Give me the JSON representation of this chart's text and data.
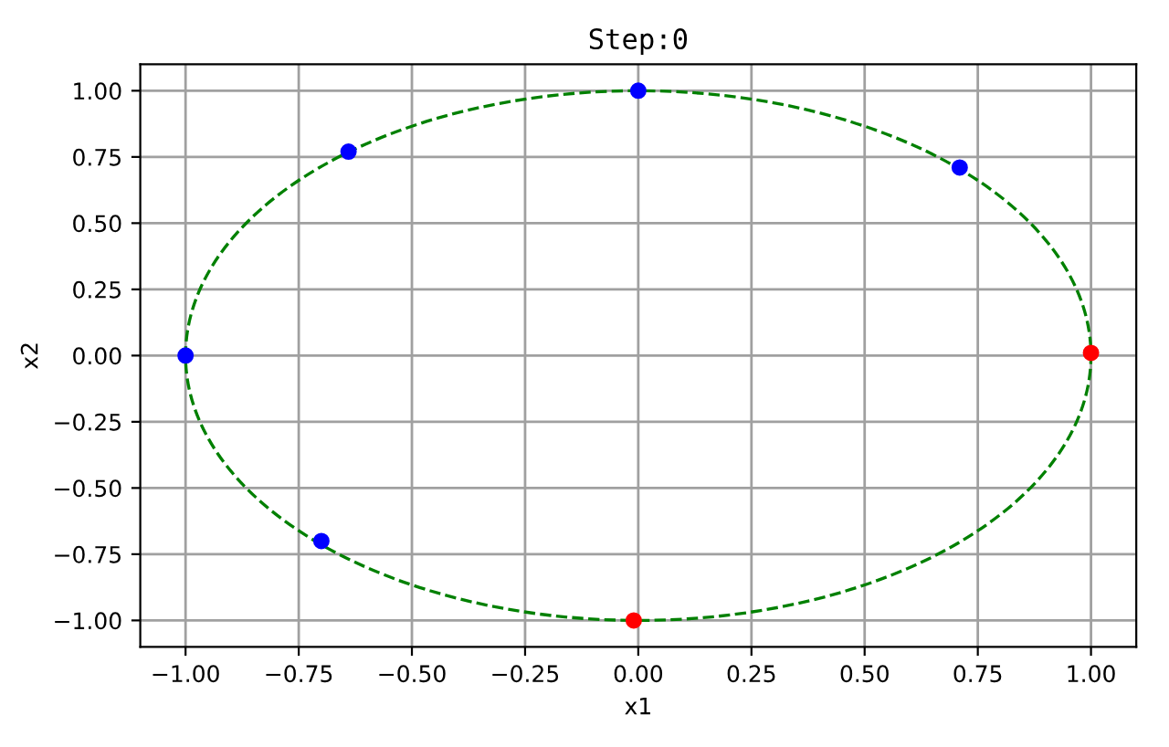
{
  "chart_data": {
    "type": "scatter",
    "title": "Step:0",
    "xlabel": "x1",
    "ylabel": "x2",
    "xlim": [
      -1.1,
      1.1
    ],
    "ylim": [
      -1.1,
      1.1
    ],
    "xticks": [
      {
        "value": -1,
        "label": "−1.00"
      },
      {
        "value": -0.75,
        "label": "−0.75"
      },
      {
        "value": -0.5,
        "label": "−0.50"
      },
      {
        "value": -0.25,
        "label": "−0.25"
      },
      {
        "value": 0,
        "label": "0.00"
      },
      {
        "value": 0.25,
        "label": "0.25"
      },
      {
        "value": 0.5,
        "label": "0.50"
      },
      {
        "value": 0.75,
        "label": "0.75"
      },
      {
        "value": 1,
        "label": "1.00"
      }
    ],
    "yticks": [
      {
        "value": -1,
        "label": "−1.00"
      },
      {
        "value": -0.75,
        "label": "−0.75"
      },
      {
        "value": -0.5,
        "label": "−0.50"
      },
      {
        "value": -0.25,
        "label": "−0.25"
      },
      {
        "value": 0,
        "label": "0.00"
      },
      {
        "value": 0.25,
        "label": "0.25"
      },
      {
        "value": 0.5,
        "label": "0.50"
      },
      {
        "value": 0.75,
        "label": "0.75"
      },
      {
        "value": 1,
        "label": "1.00"
      }
    ],
    "grid": true,
    "series": [
      {
        "color": "#0000ff",
        "marker": "circle",
        "x": [
          0.0,
          -0.64,
          0.71,
          -1.0,
          -0.7
        ],
        "values": [
          1.0,
          0.77,
          0.71,
          0.0,
          -0.7
        ]
      },
      {
        "color": "#ff0000",
        "marker": "circle",
        "x": [
          1.0,
          -0.01
        ],
        "values": [
          0.01,
          -1.0
        ]
      }
    ]
  }
}
